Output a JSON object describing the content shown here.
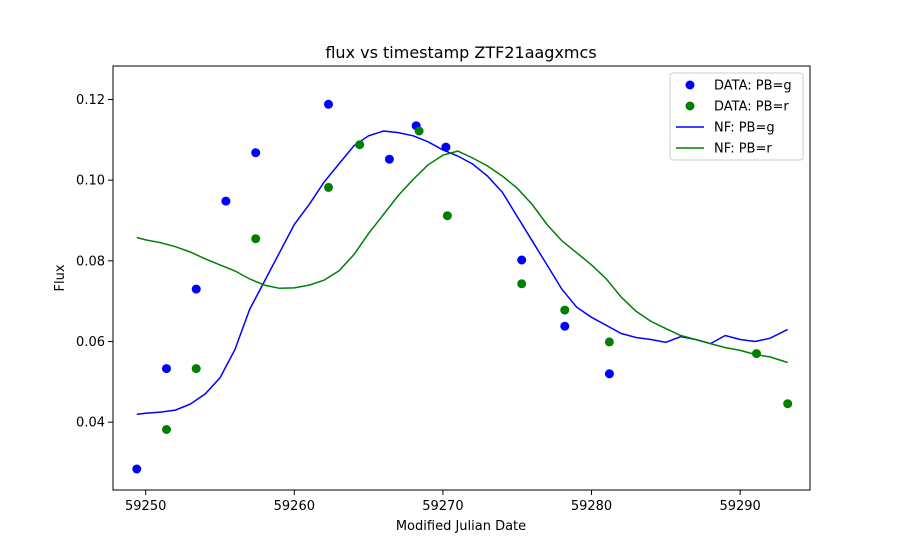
{
  "chart_data": {
    "type": "scatter",
    "title": "flux vs timestamp ZTF21aagxmcs",
    "xlabel": "Modified Julian Date",
    "ylabel": "Flux",
    "xlim": [
      59247.8,
      59294.7
    ],
    "ylim": [
      0.0232,
      0.1283
    ],
    "x_ticks": [
      59250,
      59260,
      59270,
      59280,
      59290
    ],
    "y_ticks": [
      0.04,
      0.06,
      0.08,
      0.1,
      0.12
    ],
    "x_tick_labels": [
      "59250",
      "59260",
      "59270",
      "59280",
      "59290"
    ],
    "y_tick_labels": [
      "0.04",
      "0.06",
      "0.08",
      "0.10",
      "0.12"
    ],
    "grid": false,
    "legend_position": "top-right",
    "legend": [
      "DATA: PB=g",
      "DATA: PB=r",
      "NF: PB=g",
      "NF: PB=r"
    ],
    "colors": {
      "g": "#0000ff",
      "r": "#008000"
    },
    "scatter_series": [
      {
        "name": "DATA: PB=g",
        "color": "#0000ff",
        "x": [
          59249.4,
          59251.4,
          59253.4,
          59255.4,
          59257.4,
          59262.3,
          59266.4,
          59268.2,
          59270.2,
          59275.3,
          59278.2,
          59281.2
        ],
        "y": [
          0.0284,
          0.0533,
          0.073,
          0.0948,
          0.1068,
          0.1188,
          0.1052,
          0.1135,
          0.1082,
          0.0802,
          0.0638,
          0.052
        ]
      },
      {
        "name": "DATA: PB=r",
        "color": "#008000",
        "x": [
          59251.4,
          59253.4,
          59257.4,
          59262.3,
          59264.4,
          59268.4,
          59270.3,
          59275.3,
          59278.2,
          59281.2,
          59291.1,
          59293.2
        ],
        "y": [
          0.0382,
          0.0533,
          0.0855,
          0.0982,
          0.1088,
          0.1122,
          0.0912,
          0.0743,
          0.0678,
          0.0599,
          0.057,
          0.0446
        ]
      }
    ],
    "line_series": [
      {
        "name": "NF: PB=g",
        "color": "#0000ff",
        "x": [
          59249.4,
          59250,
          59251,
          59252,
          59253,
          59254,
          59255,
          59256,
          59257,
          59258,
          59259,
          59260,
          59261,
          59262,
          59263,
          59264,
          59265,
          59266,
          59267,
          59268,
          59269,
          59270,
          59271,
          59272,
          59273,
          59274,
          59275,
          59276,
          59277,
          59278,
          59279,
          59280,
          59281,
          59282,
          59283,
          59284,
          59285,
          59286,
          59287,
          59288,
          59289,
          59290,
          59291,
          59292,
          59293.2
        ],
        "y": [
          0.042,
          0.0422,
          0.0425,
          0.043,
          0.0445,
          0.047,
          0.051,
          0.058,
          0.068,
          0.075,
          0.082,
          0.089,
          0.094,
          0.0995,
          0.104,
          0.1085,
          0.111,
          0.1122,
          0.1118,
          0.111,
          0.1095,
          0.1075,
          0.106,
          0.104,
          0.101,
          0.097,
          0.091,
          0.085,
          0.079,
          0.073,
          0.0685,
          0.066,
          0.064,
          0.062,
          0.061,
          0.0605,
          0.0598,
          0.0612,
          0.0605,
          0.0595,
          0.0615,
          0.0605,
          0.06,
          0.0608,
          0.063
        ]
      },
      {
        "name": "NF: PB=r",
        "color": "#008000",
        "x": [
          59249.4,
          59250,
          59251,
          59252,
          59253,
          59254,
          59255,
          59256,
          59257,
          59258,
          59259,
          59260,
          59261,
          59262,
          59263,
          59264,
          59265,
          59266,
          59267,
          59268,
          59269,
          59270,
          59271,
          59272,
          59273,
          59274,
          59275,
          59276,
          59277,
          59278,
          59279,
          59280,
          59281,
          59282,
          59283,
          59284,
          59285,
          59286,
          59287,
          59288,
          59289,
          59290,
          59291,
          59292,
          59293.2
        ],
        "y": [
          0.0858,
          0.0852,
          0.0845,
          0.0835,
          0.0822,
          0.0805,
          0.079,
          0.0775,
          0.0755,
          0.074,
          0.0732,
          0.0733,
          0.074,
          0.0752,
          0.0775,
          0.0815,
          0.0868,
          0.0915,
          0.0962,
          0.1002,
          0.1038,
          0.1062,
          0.1072,
          0.1055,
          0.1035,
          0.101,
          0.098,
          0.094,
          0.089,
          0.085,
          0.082,
          0.079,
          0.0755,
          0.071,
          0.0675,
          0.065,
          0.0632,
          0.0615,
          0.0605,
          0.0595,
          0.0585,
          0.0578,
          0.0568,
          0.0562,
          0.0548
        ]
      }
    ]
  }
}
